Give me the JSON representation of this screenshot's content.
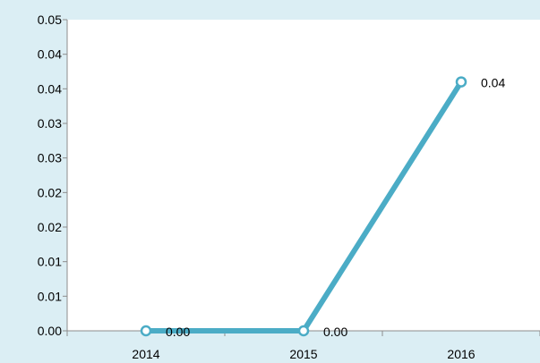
{
  "chart_data": {
    "type": "line",
    "title": "",
    "xlabel": "",
    "ylabel": "",
    "categories": [
      "2014",
      "2015",
      "2016"
    ],
    "series": [
      {
        "values": [
          0.0,
          0.0,
          0.04
        ],
        "labels": [
          "0.00",
          "0.00",
          "0.04"
        ]
      }
    ],
    "ylim": [
      0,
      0.05
    ],
    "ytick_values": [
      0,
      0.00556,
      0.01111,
      0.01667,
      0.02222,
      0.02778,
      0.03333,
      0.03889,
      0.04444,
      0.05
    ],
    "ytick_labels": [
      "0.00",
      "0.01",
      "0.01",
      "0.02",
      "0.02",
      "0.03",
      "0.03",
      "0.04",
      "0.04",
      "0.05"
    ],
    "grid": false,
    "legend": "none",
    "colors": {
      "background": "#dbeef4",
      "plot_area": "#ffffff",
      "line": "#4bacc6",
      "marker_fill": "#ffffff"
    }
  }
}
